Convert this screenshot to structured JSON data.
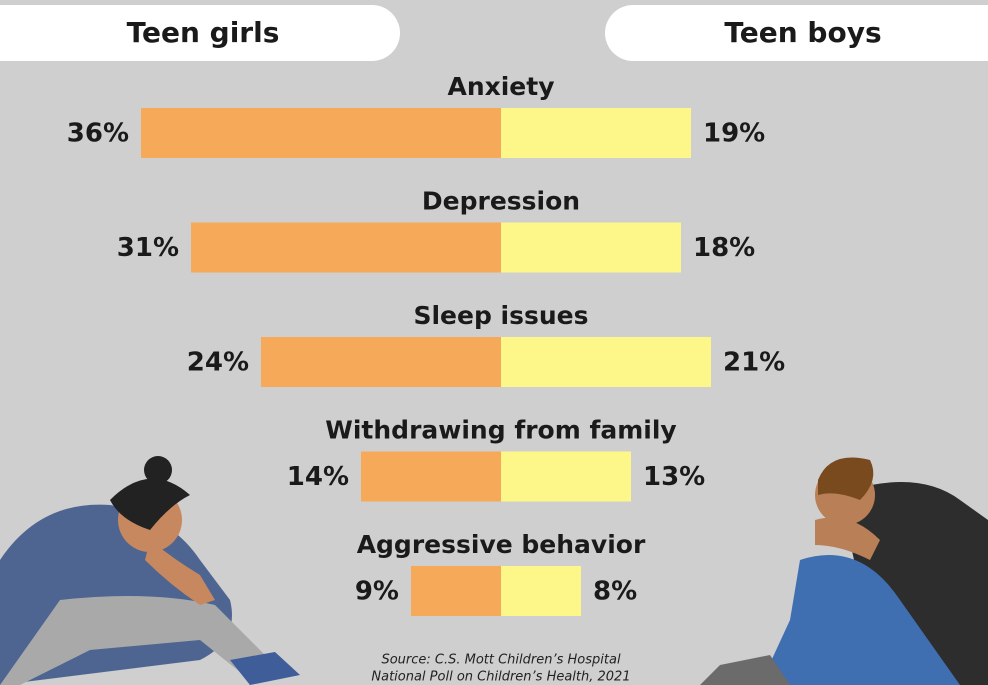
{
  "chart_data": {
    "type": "butterfly",
    "categories": [
      "Anxiety",
      "Depression",
      "Sleep issues",
      "Withdrawing from family",
      "Aggressive behavior"
    ],
    "series": [
      {
        "name": "Teen girls",
        "color": "#f7a95a",
        "values": [
          36,
          31,
          24,
          14,
          9
        ],
        "value_labels": [
          "36%",
          "31%",
          "24%",
          "14%",
          "9%"
        ]
      },
      {
        "name": "Teen boys",
        "color": "#fdf78a",
        "values": [
          19,
          18,
          21,
          13,
          8
        ],
        "value_labels": [
          "19%",
          "18%",
          "21%",
          "13%",
          "8%"
        ]
      }
    ],
    "source": [
      "Source: C.S. Mott Children’s Hospital",
      "National Poll on Children’s Health, 2021"
    ]
  }
}
